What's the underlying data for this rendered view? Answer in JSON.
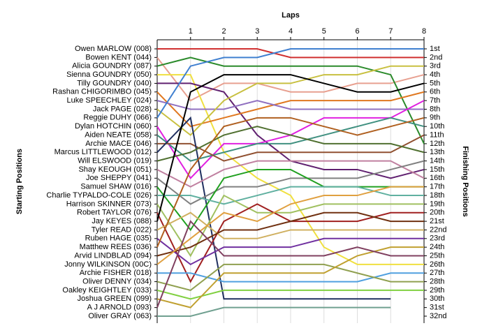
{
  "chart_data": {
    "type": "line",
    "x_label": "Laps",
    "y_label": "Starting Positions",
    "y2_label": "Finishing Positions",
    "x": [
      0,
      1,
      2,
      3,
      4,
      5,
      6,
      7,
      8
    ],
    "xlim": [
      0,
      8
    ],
    "xticks": [
      1,
      2,
      3,
      4,
      5,
      6,
      7,
      8
    ],
    "ylim": [
      1,
      32
    ],
    "grid": true,
    "y2ticks": [
      "1st",
      "2nd",
      "3rd",
      "4th",
      "5th",
      "6th",
      "7th",
      "8th",
      "9th",
      "10th",
      "11th",
      "12th",
      "13th",
      "14th",
      "15th",
      "16th",
      "17th",
      "18th",
      "19th",
      "20th",
      "21st",
      "22nd",
      "23rd",
      "24th",
      "25th",
      "26th",
      "27th",
      "28th",
      "29th",
      "30th",
      "31st",
      "32nd"
    ],
    "series": [
      {
        "name": "Owen MARLOW (008)",
        "color": "#d03030",
        "values": [
          1,
          1,
          1,
          1,
          2,
          2,
          2,
          2,
          2
        ]
      },
      {
        "name": "Bowen KENT (044)",
        "color": "#e8a090",
        "values": [
          2,
          7,
          5,
          5,
          6,
          6,
          5,
          5,
          4
        ]
      },
      {
        "name": "Alicia GOUNDRY (087)",
        "color": "#2a8a2a",
        "values": [
          3,
          2,
          3,
          3,
          3,
          3,
          3,
          4,
          12
        ]
      },
      {
        "name": "Sienna GOUNDRY (050)",
        "color": "#f0e040",
        "values": [
          4,
          4,
          13,
          16,
          18,
          24,
          26,
          26,
          26
        ]
      },
      {
        "name": "Tilly GOUNDRY (040)",
        "color": "#602070",
        "values": [
          5,
          5,
          6,
          11,
          14,
          15,
          15,
          16,
          15
        ]
      },
      {
        "name": "Rashan CHIGORIMBO (045)",
        "color": "#e07820",
        "values": [
          6,
          10,
          9,
          8,
          7,
          7,
          7,
          7,
          6
        ]
      },
      {
        "name": "Luke SPEECHLEY (024)",
        "color": "#9070c0",
        "values": [
          7,
          8,
          8,
          7,
          8,
          8,
          8,
          8,
          8
        ]
      },
      {
        "name": "Jack PAGE (028)",
        "color": "#c8c040",
        "values": [
          8,
          11,
          7,
          5,
          5,
          4,
          4,
          3,
          3
        ]
      },
      {
        "name": "Reggie DUHY (066)",
        "color": "#4080d0",
        "values": [
          9,
          3,
          2,
          2,
          1,
          1,
          1,
          1,
          1
        ]
      },
      {
        "name": "Dylan HOTCHIN (060)",
        "color": "#e020e0",
        "values": [
          10,
          16,
          12,
          12,
          11,
          9,
          9,
          9,
          7
        ]
      },
      {
        "name": "Aiden NEATE (058)",
        "color": "#409080",
        "values": [
          11,
          14,
          13,
          12,
          12,
          11,
          10,
          9,
          10
        ]
      },
      {
        "name": "Archie MACE (046)",
        "color": "#905030",
        "values": [
          12,
          12,
          14,
          13,
          13,
          13,
          13,
          13,
          11
        ]
      },
      {
        "name": "Marcus LITTLEWOOD (012)",
        "color": "#203060",
        "values": [
          13,
          9,
          30,
          30,
          30,
          30,
          30,
          30,
          null
        ]
      },
      {
        "name": "Will ELSWOOD (019)",
        "color": "#507030",
        "values": [
          14,
          13,
          11,
          10,
          11,
          12,
          12,
          12,
          13
        ]
      },
      {
        "name": "Shay KEOUGH (051)",
        "color": "#c080a0",
        "values": [
          15,
          17,
          15,
          14,
          14,
          14,
          14,
          14,
          16
        ]
      },
      {
        "name": "Joe SHEPPY (041)",
        "color": "#808080",
        "values": [
          16,
          19,
          17,
          17,
          16,
          16,
          16,
          15,
          14
        ]
      },
      {
        "name": "Samuel SHAW (016)",
        "color": "#20a020",
        "values": [
          17,
          22,
          16,
          15,
          15,
          17,
          17,
          17,
          17
        ]
      },
      {
        "name": "Charlie TYPALDO-COLE (026)",
        "color": "#60b0a0",
        "values": [
          18,
          18,
          19,
          18,
          17,
          17,
          17,
          18,
          18
        ]
      },
      {
        "name": "Harrison SKINNER (073)",
        "color": "#a0c060",
        "values": [
          19,
          25,
          18,
          20,
          20,
          19,
          19,
          19,
          19
        ]
      },
      {
        "name": "Robert TAYLOR (076)",
        "color": "#a02020",
        "values": [
          20,
          28,
          21,
          19,
          21,
          21,
          21,
          20,
          20
        ]
      },
      {
        "name": "Jay KEYES (088)",
        "color": "#000000",
        "values": [
          21,
          6,
          4,
          4,
          4,
          5,
          6,
          6,
          5
        ]
      },
      {
        "name": "Tyler READ (022)",
        "color": "#d0b060",
        "values": [
          22,
          20,
          23,
          23,
          22,
          22,
          22,
          22,
          22
        ]
      },
      {
        "name": "Ruben HAGE (035)",
        "color": "#7030a0",
        "values": [
          23,
          26,
          24,
          24,
          24,
          23,
          23,
          23,
          23
        ]
      },
      {
        "name": "Matthew REES (036)",
        "color": "#b06020",
        "values": [
          24,
          15,
          10,
          9,
          9,
          10,
          11,
          10,
          9
        ]
      },
      {
        "name": "Arvid LINDBLAD (094)",
        "color": "#703010",
        "values": [
          25,
          24,
          22,
          22,
          21,
          20,
          20,
          21,
          21
        ]
      },
      {
        "name": "Jonny WILKINSON (00C)",
        "color": "#e0a040",
        "values": [
          26,
          23,
          20,
          21,
          19,
          18,
          18,
          17,
          17
        ]
      },
      {
        "name": "Archie FISHER (018)",
        "color": "#50a0e0",
        "values": [
          27,
          27,
          28,
          28,
          28,
          28,
          28,
          27,
          27
        ]
      },
      {
        "name": "Oliver DENNY (034)",
        "color": "#90a050",
        "values": [
          28,
          29,
          26,
          26,
          26,
          26,
          27,
          28,
          28
        ]
      },
      {
        "name": "Oakley KEIGHTLEY (033)",
        "color": "#80d040",
        "values": [
          29,
          30,
          29,
          29,
          29,
          29,
          29,
          29,
          29
        ]
      },
      {
        "name": "Joshua GREEN (099)",
        "color": "#c0a030",
        "values": [
          30,
          31,
          27,
          27,
          27,
          27,
          25,
          24,
          24
        ]
      },
      {
        "name": "A J ARNOLD (093)",
        "color": "#804060",
        "values": [
          31,
          21,
          25,
          25,
          25,
          25,
          24,
          25,
          25
        ]
      },
      {
        "name": "Oliver GRAY (063)",
        "color": "#70a090",
        "values": [
          32,
          32,
          31,
          31,
          31,
          31,
          31,
          31,
          null
        ]
      }
    ]
  }
}
